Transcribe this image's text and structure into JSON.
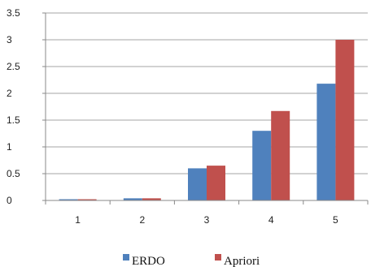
{
  "chart_data": {
    "type": "bar",
    "categories": [
      "1",
      "2",
      "3",
      "4",
      "5"
    ],
    "series": [
      {
        "name": "ERDO",
        "values": [
          0.02,
          0.04,
          0.6,
          1.3,
          2.18
        ],
        "color": "#4F81BD"
      },
      {
        "name": "Apriori",
        "values": [
          0.02,
          0.04,
          0.65,
          1.67,
          3.0
        ],
        "color": "#C0504D"
      }
    ],
    "y_ticks": [
      "0",
      "0.5",
      "1",
      "1.5",
      "2",
      "2.5",
      "3",
      "3.5"
    ],
    "ylim": [
      0,
      3.5
    ],
    "grid": true,
    "legend_position": "bottom",
    "title": "",
    "xlabel": "",
    "ylabel": ""
  }
}
